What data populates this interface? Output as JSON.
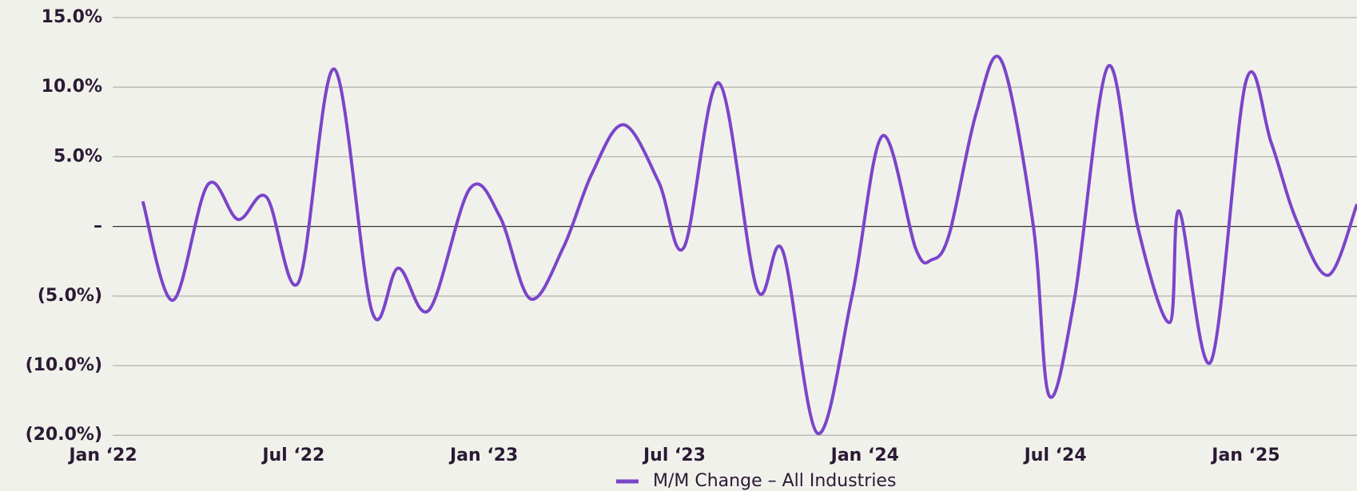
{
  "chart_data": {
    "type": "line",
    "x": [
      1.25,
      2.2,
      3.3,
      4.25,
      5.15,
      6.16,
      7.28,
      8.47,
      9.3,
      10.27,
      11.55,
      12.5,
      13.46,
      14.5,
      15.4,
      16.4,
      17.5,
      18.3,
      19.4,
      20.6,
      21.4,
      22.5,
      23.6,
      24.55,
      25.6,
      26.1,
      26.65,
      27.5,
      28.3,
      29.3,
      29.8,
      30.6,
      31.66,
      32.6,
      33.6,
      33.9,
      34.9,
      36.0,
      36.8,
      37.6,
      38.6,
      39.5
    ],
    "series": [
      {
        "name": "M/M Change – All Industries",
        "color": "#7b45c9",
        "values": [
          1.8,
          -5.3,
          3.0,
          0.5,
          2.1,
          -4.0,
          11.3,
          -6.1,
          -3.0,
          -6.0,
          2.7,
          0.7,
          -5.2,
          -1.5,
          3.8,
          7.3,
          3.2,
          -1.5,
          10.3,
          -4.5,
          -1.7,
          -19.7,
          -4.9,
          6.5,
          -1.6,
          -2.4,
          -0.6,
          8.1,
          11.9,
          0.1,
          -14.3,
          -5.2,
          11.5,
          -0.1,
          -6.9,
          1.1,
          -9.7,
          10.4,
          6.0,
          0.4,
          -3.5,
          1.6
        ]
      }
    ],
    "xlim": [
      0,
      39.5
    ],
    "xticks": [
      {
        "value": 0,
        "label": "Jan ‘22"
      },
      {
        "value": 6,
        "label": "Jul ‘22"
      },
      {
        "value": 12,
        "label": "Jan ‘23"
      },
      {
        "value": 18,
        "label": "Jul ‘23"
      },
      {
        "value": 24,
        "label": "Jan ‘24"
      },
      {
        "value": 30,
        "label": "Jul ‘24"
      },
      {
        "value": 36,
        "label": "Jan ‘25"
      }
    ],
    "ylim": [
      -20,
      15
    ],
    "yticks": [
      {
        "value": 15,
        "label": "15.0%"
      },
      {
        "value": 10,
        "label": "10.0%"
      },
      {
        "value": 5,
        "label": "5.0%"
      },
      {
        "value": 0,
        "label": "–"
      },
      {
        "value": -5,
        "label": "(5.0%)"
      },
      {
        "value": -10,
        "label": "(10.0%)"
      },
      {
        "value": -20,
        "label": "(20.0%)"
      }
    ],
    "grid": true
  }
}
